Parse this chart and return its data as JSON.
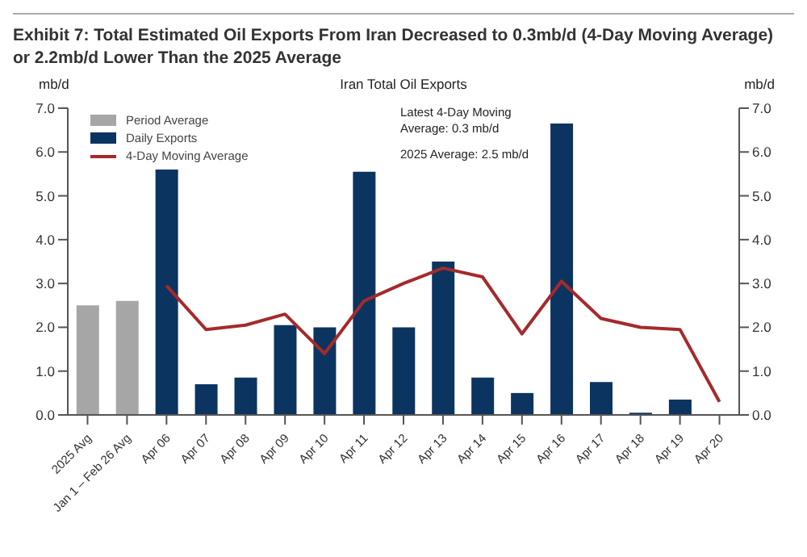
{
  "chart_data": {
    "type": "bar",
    "title": "Exhibit 7: Total Estimated Oil Exports From Iran Decreased to 0.3mb/d (4-Day Moving Average) or 2.2mb/d Lower Than the 2025 Average",
    "subtitle": "Iran Total Oil Exports",
    "ylabel": "mb/d",
    "y2label": "mb/d",
    "categories": [
      "2025 Avg",
      "Jan 1 – Feb 26 Avg",
      "Apr 06",
      "Apr 07",
      "Apr 08",
      "Apr 09",
      "Apr 10",
      "Apr 11",
      "Apr 12",
      "Apr 13",
      "Apr 14",
      "Apr 15",
      "Apr 16",
      "Apr 17",
      "Apr 18",
      "Apr 19",
      "Apr 20"
    ],
    "series": [
      {
        "name": "Period Average",
        "color": "#a6a6a6",
        "values": [
          2.5,
          2.6,
          null,
          null,
          null,
          null,
          null,
          null,
          null,
          null,
          null,
          null,
          null,
          null,
          null,
          null,
          null
        ]
      },
      {
        "name": "Daily Exports",
        "color": "#0c3461",
        "values": [
          null,
          null,
          5.6,
          0.7,
          0.85,
          2.05,
          2.0,
          5.55,
          2.0,
          3.5,
          0.85,
          0.5,
          6.65,
          0.75,
          0.05,
          0.35,
          null
        ]
      },
      {
        "name": "4-Day Moving Average",
        "type": "line",
        "color": "#a52a2a",
        "values": [
          null,
          null,
          2.95,
          1.95,
          2.05,
          2.3,
          1.4,
          2.6,
          3.0,
          3.35,
          3.15,
          1.85,
          3.05,
          2.2,
          2.0,
          1.95,
          0.3
        ]
      }
    ],
    "ylim": [
      0,
      7
    ],
    "yticks": [
      {
        "value": 0,
        "label": "0.0"
      },
      {
        "value": 1,
        "label": "1.0"
      },
      {
        "value": 2,
        "label": "2.0"
      },
      {
        "value": 3,
        "label": "3.0"
      },
      {
        "value": 4,
        "label": "4.0"
      },
      {
        "value": 5,
        "label": "5.0"
      },
      {
        "value": 6,
        "label": "6.0"
      },
      {
        "value": 7,
        "label": "7.0"
      }
    ],
    "y2lim": [
      0,
      7
    ],
    "y2ticks": [
      {
        "value": 0,
        "label": "0.0"
      },
      {
        "value": 1,
        "label": "1.0"
      },
      {
        "value": 2,
        "label": "2.0"
      },
      {
        "value": 3,
        "label": "3.0"
      },
      {
        "value": 4,
        "label": "4.0"
      },
      {
        "value": 5,
        "label": "5.0"
      },
      {
        "value": 6,
        "label": "6.0"
      },
      {
        "value": 7,
        "label": "7.0"
      }
    ],
    "annotations": [
      "Latest 4-Day Moving Average: 0.3 mb/d",
      "2025 Average: 2.5 mb/d"
    ],
    "legend": "top left",
    "grid": false,
    "marker": "none",
    "line_style": "solid"
  }
}
